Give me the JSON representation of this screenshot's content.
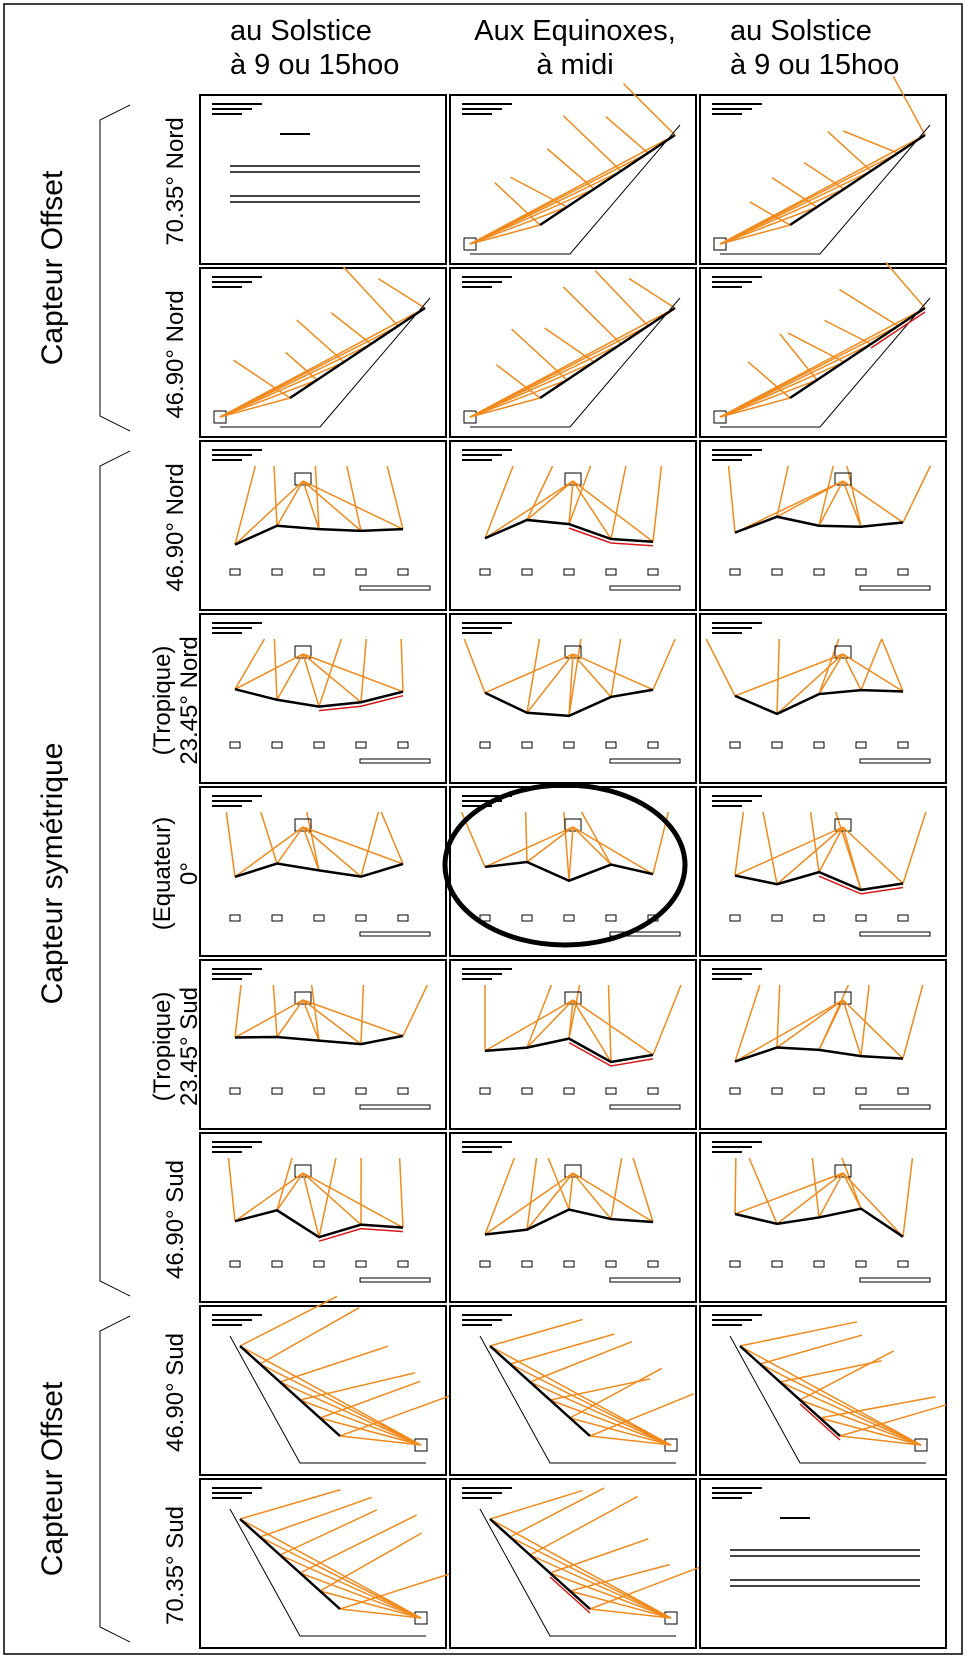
{
  "headers": {
    "columns": [
      {
        "lines": [
          "au Solstice",
          "à 9 ou 15hoo"
        ]
      },
      {
        "lines": [
          "Aux Equinoxes,",
          "à midi"
        ]
      },
      {
        "lines": [
          "au Solstice",
          "à 9 ou 15hoo"
        ]
      }
    ]
  },
  "groups": [
    {
      "label": "Capteur Offset"
    },
    {
      "label": "Capteur symétrique"
    },
    {
      "label": "Capteur Offset"
    }
  ],
  "rows": [
    {
      "lines": [
        "70.35° Nord"
      ]
    },
    {
      "lines": [
        "46.90° Nord"
      ]
    },
    {
      "lines": [
        "46.90° Nord"
      ]
    },
    {
      "lines": [
        "(Tropique)",
        "23.45° Nord"
      ]
    },
    {
      "lines": [
        "(Equateur)",
        "0°"
      ]
    },
    {
      "lines": [
        "(Tropique)",
        "23.45° Sud"
      ]
    },
    {
      "lines": [
        "46.90° Sud"
      ]
    },
    {
      "lines": [
        "46.90° Sud"
      ]
    },
    {
      "lines": [
        "70.35° Sud"
      ]
    }
  ]
}
